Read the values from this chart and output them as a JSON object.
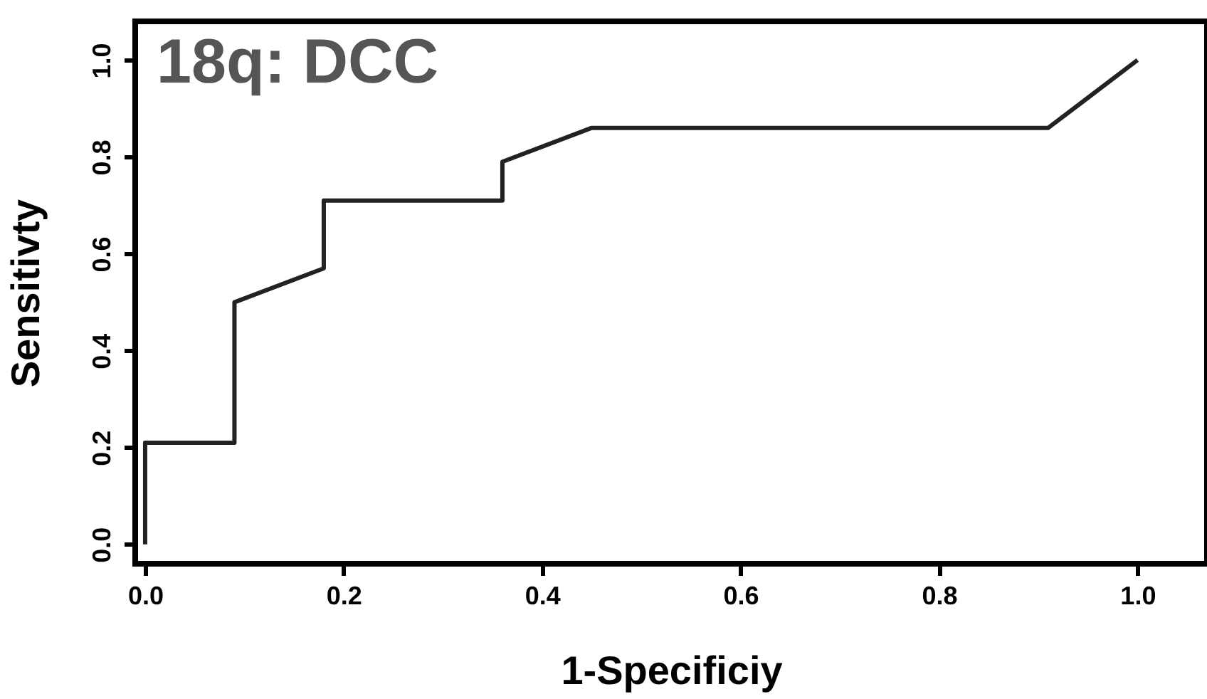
{
  "chart_data": {
    "type": "line",
    "xlabel": "1-Specificiy",
    "ylabel": "Sensitivty",
    "annotations": [
      "18q: DCC"
    ],
    "x": [
      0,
      0,
      0.09,
      0.09,
      0.18,
      0.18,
      0.36,
      0.36,
      0.45,
      0.91,
      1.0
    ],
    "series": [
      {
        "color": "#222222",
        "values": [
          0,
          0.21,
          0.21,
          0.5,
          0.57,
          0.71,
          0.71,
          0.79,
          0.86,
          0.86,
          1.0
        ]
      }
    ],
    "xlim": [
      -0.01,
      1.07
    ],
    "ylim": [
      -0.04,
      1.08
    ],
    "xticks": [
      {
        "value": 0,
        "label": "0.0"
      },
      0.2,
      0.4,
      0.6,
      0.8,
      {
        "value": 1,
        "label": "1.0"
      }
    ],
    "yticks": [
      {
        "value": 0,
        "label": "0.0"
      },
      0.2,
      0.4,
      0.6,
      0.8,
      {
        "value": 1,
        "label": "1.0"
      }
    ],
    "grid": false,
    "marker": "none",
    "line_style": "solid"
  }
}
